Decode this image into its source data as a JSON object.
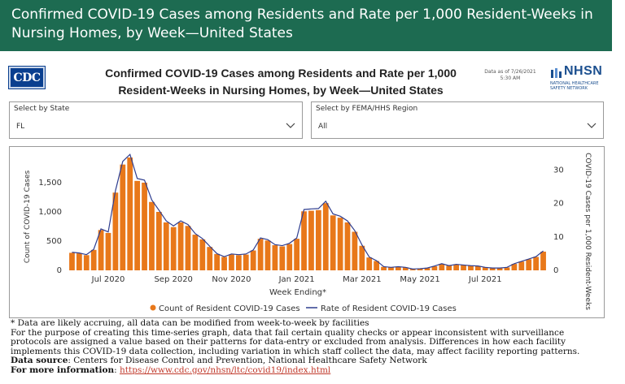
{
  "banner": {
    "title": "Confirmed COVID-19 Cases among Residents and Rate per 1,000 Resident-Weeks in Nursing Homes, by Week—United States"
  },
  "report": {
    "logo_text": "CDC",
    "title_line1": "Confirmed COVID-19 Cases among Residents and Rate per 1,000",
    "title_line2": "Resident-Weeks in Nursing Homes, by Week—United States",
    "data_as_of_line1": "Data as of 7/26/2021",
    "data_as_of_line2": "5:30 AM",
    "nhsn_logo": "NHSN",
    "nhsn_sub_line1": "NATIONAL HEALTHCARE",
    "nhsn_sub_line2": "SAFETY NETWORK"
  },
  "filters": {
    "state": {
      "label": "Select by State",
      "value": "FL"
    },
    "region": {
      "label": "Select by FEMA/HHS Region",
      "value": "All"
    }
  },
  "colors": {
    "banner": "#1d6b51",
    "bars": "#e8781a",
    "line": "#2e3d8f",
    "link": "#c0392b"
  },
  "icons": {
    "dropdown": "chevron-down-icon",
    "logo": "cdc-logo",
    "nhsn": "nhsn-logo"
  },
  "chart_data": {
    "type": "bar",
    "xlabel": "Week Ending*",
    "ylabel": "Count of COVID-19 Cases",
    "y2label": "COVID-19 Cases per 1,000 Resident-Weeks",
    "ylim": [
      0,
      2000
    ],
    "y2lim": [
      0,
      35
    ],
    "yticks": [
      0,
      500,
      1000,
      1500
    ],
    "yticklabels": [
      "0",
      "500",
      "1,000",
      "1,500"
    ],
    "y2ticks": [
      0,
      10,
      20,
      30
    ],
    "x_start_week": "2020-05-31",
    "x_tick_labels": [
      {
        "week": 5,
        "label": "Jul 2020"
      },
      {
        "week": 14,
        "label": "Sep 2020"
      },
      {
        "week": 22,
        "label": "Nov 2020"
      },
      {
        "week": 31,
        "label": "Jan 2021"
      },
      {
        "week": 40,
        "label": "Mar 2021"
      },
      {
        "week": 48,
        "label": "May 2021"
      },
      {
        "week": 57,
        "label": "Jul 2021"
      }
    ],
    "series": [
      {
        "name": "Count of Resident COVID-19 Cases",
        "kind": "bar",
        "values": [
          300,
          290,
          260,
          350,
          690,
          640,
          1330,
          1810,
          1930,
          1530,
          1500,
          1170,
          1000,
          820,
          740,
          820,
          760,
          610,
          530,
          400,
          280,
          230,
          270,
          260,
          270,
          340,
          540,
          510,
          430,
          410,
          450,
          540,
          1010,
          1020,
          1030,
          1150,
          940,
          900,
          820,
          660,
          420,
          220,
          160,
          60,
          50,
          60,
          50,
          20,
          30,
          40,
          70,
          110,
          80,
          100,
          90,
          80,
          70,
          50,
          40,
          40,
          50,
          110,
          150,
          190,
          230,
          320
        ]
      },
      {
        "name": "Rate of Resident COVID-19 Cases",
        "kind": "line",
        "values": [
          5.4,
          5.2,
          4.7,
          6.3,
          12.4,
          11.5,
          23.9,
          32.6,
          34.7,
          27.5,
          27.0,
          21.1,
          18.0,
          14.8,
          13.3,
          14.8,
          13.7,
          11.0,
          9.5,
          7.2,
          5.0,
          4.1,
          4.9,
          4.7,
          4.9,
          6.1,
          9.7,
          9.2,
          7.7,
          7.4,
          8.1,
          9.7,
          18.2,
          18.4,
          18.5,
          20.7,
          16.9,
          16.2,
          14.8,
          11.9,
          7.6,
          4.0,
          2.9,
          1.1,
          0.9,
          1.1,
          0.9,
          0.4,
          0.5,
          0.7,
          1.3,
          2.0,
          1.4,
          1.8,
          1.6,
          1.4,
          1.3,
          0.9,
          0.7,
          0.7,
          0.9,
          2.0,
          2.7,
          3.4,
          4.1,
          5.8
        ]
      }
    ]
  },
  "notes": {
    "line1": "* Data are likely accruing, all data can be modified from week-to-week by facilities",
    "line2": "For the purpose of creating this time-series graph, data that fail certain quality checks or appear inconsistent with surveillance",
    "line3": "protocols are assigned a value based on their patterns for data-entry or excluded from analysis. Differences in how each facility",
    "line4": "implements this COVID-19 data collection, including variation in which staff collect the data, may affect facility reporting patterns.",
    "source_label": "Data source",
    "source_text": ": Centers for Disease Control and Prevention, National Healthcare Safety Network",
    "info_label": "For more information",
    "info_text": ": ",
    "info_link": "https://www.cdc.gov/nhsn/ltc/covid19/index.html"
  }
}
